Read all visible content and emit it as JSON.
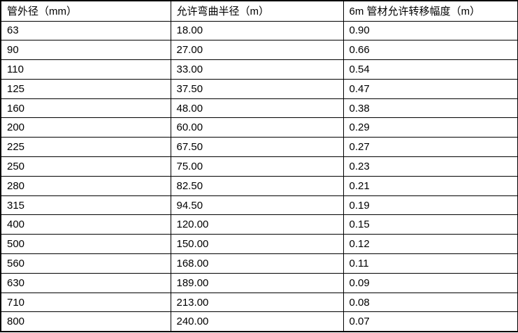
{
  "table": {
    "headers": [
      "管外径（mm）",
      "允许弯曲半径（m）",
      "6m 管材允许转移幅度（m）"
    ],
    "rows": [
      [
        "63",
        "18.00",
        "0.90"
      ],
      [
        "90",
        "27.00",
        "0.66"
      ],
      [
        "110",
        "33.00",
        "0.54"
      ],
      [
        "125",
        "37.50",
        "0.47"
      ],
      [
        "160",
        "48.00",
        "0.38"
      ],
      [
        "200",
        "60.00",
        "0.29"
      ],
      [
        "225",
        "67.50",
        "0.27"
      ],
      [
        "250",
        "75.00",
        "0.23"
      ],
      [
        "280",
        "82.50",
        "0.21"
      ],
      [
        "315",
        "94.50",
        "0.19"
      ],
      [
        "400",
        "120.00",
        "0.15"
      ],
      [
        "500",
        "150.00",
        "0.12"
      ],
      [
        "560",
        "168.00",
        "0.11"
      ],
      [
        "630",
        "189.00",
        "0.09"
      ],
      [
        "710",
        "213.00",
        "0.08"
      ],
      [
        "800",
        "240.00",
        "0.07"
      ]
    ]
  },
  "colors": {
    "border": "#000000",
    "text": "#000000",
    "background": "#ffffff"
  }
}
